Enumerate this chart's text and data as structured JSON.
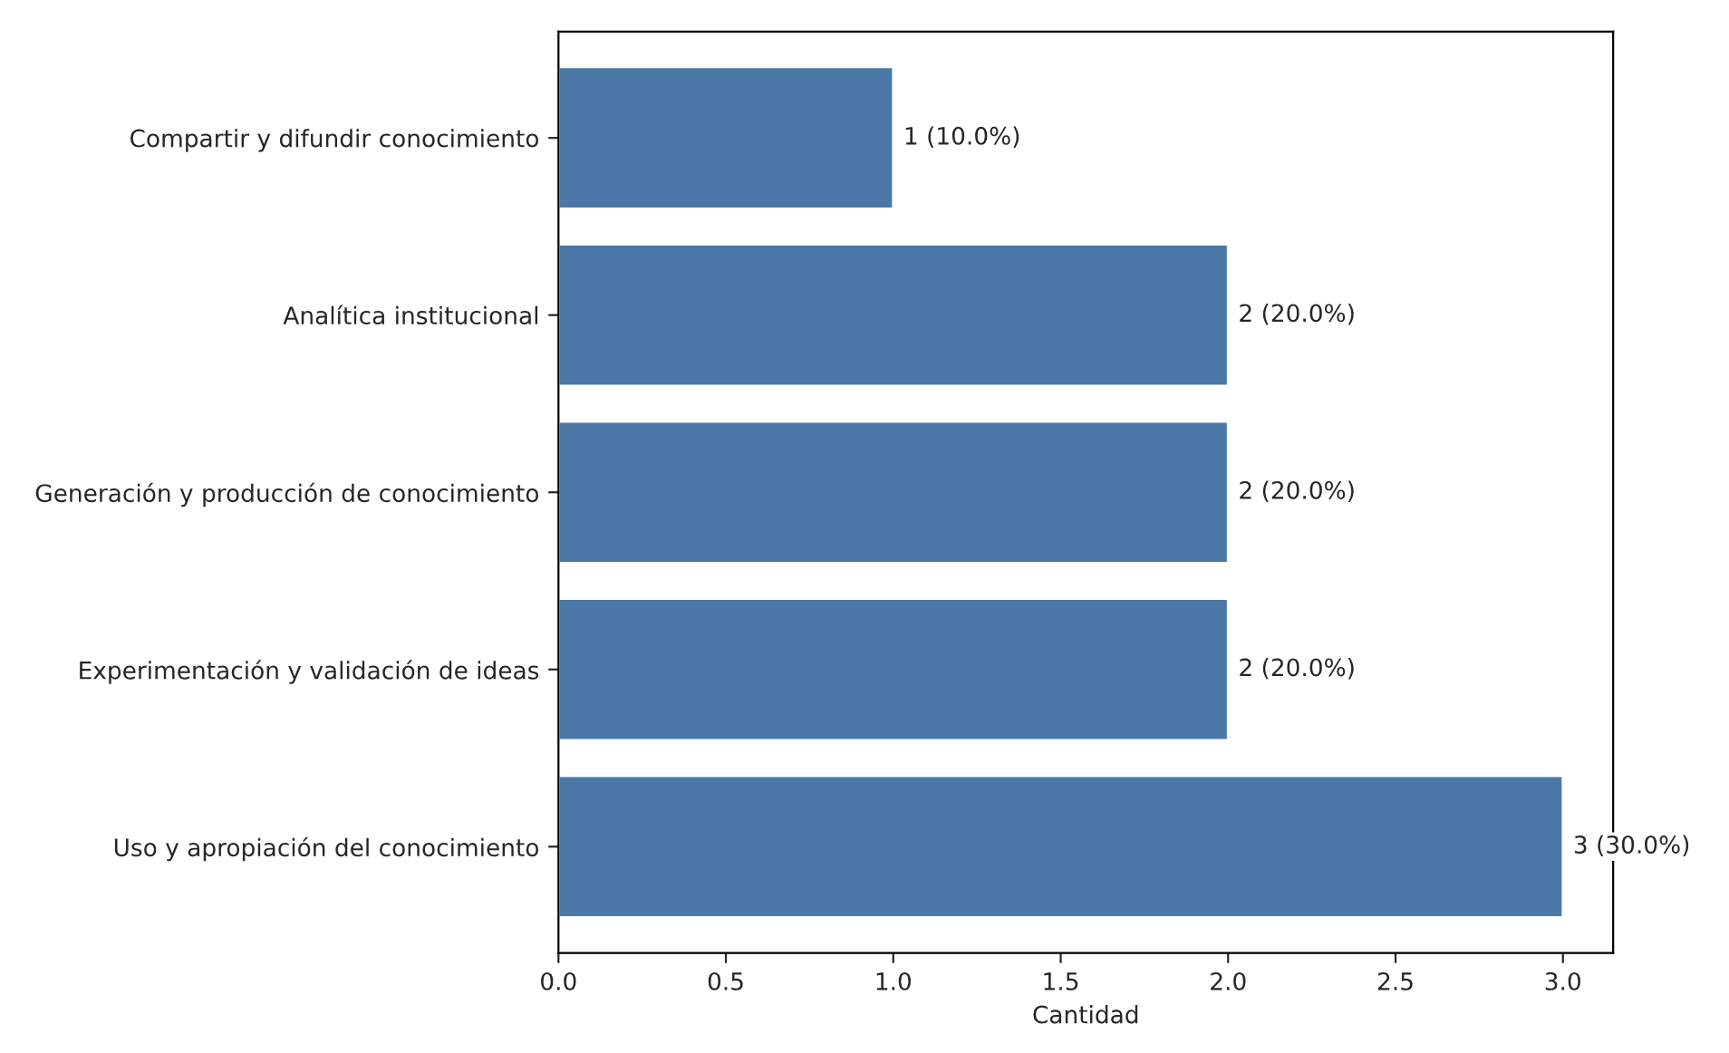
{
  "chart_data": {
    "type": "bar",
    "orientation": "horizontal",
    "xlabel": "Cantidad",
    "categories": [
      "Compartir y difundir conocimiento",
      "Analítica institucional",
      "Generación y producción de conocimiento",
      "Experimentación y validación de ideas",
      "Uso y apropiación del conocimiento"
    ],
    "values": [
      1,
      2,
      2,
      2,
      3
    ],
    "value_labels": [
      "1 (10.0%)",
      "2 (20.0%)",
      "2 (20.0%)",
      "2 (20.0%)",
      "3 (30.0%)"
    ],
    "color": "#4c78a8",
    "xlim": [
      0,
      3.15
    ],
    "xticks": [
      {
        "value": 0,
        "label": "0.0"
      },
      0.5,
      {
        "value": 1,
        "label": "1.0"
      },
      1.5,
      {
        "value": 2,
        "label": "2.0"
      },
      2.5,
      {
        "value": 3,
        "label": "3.0"
      }
    ],
    "grid": false
  }
}
